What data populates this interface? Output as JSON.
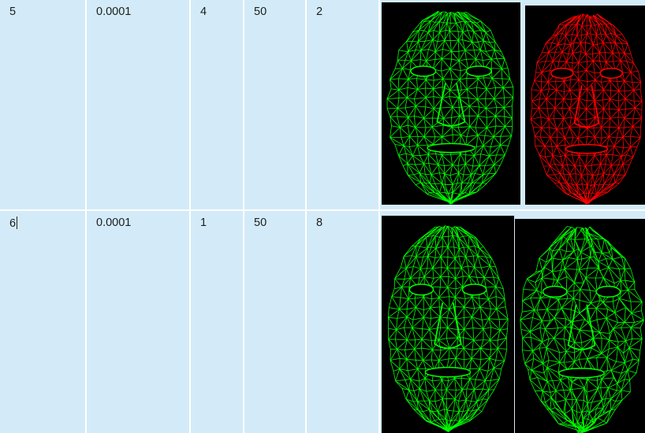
{
  "table": {
    "rows": [
      {
        "cells": [
          "5",
          "0.0001",
          "4",
          "50",
          "2"
        ],
        "meshes": [
          {
            "name": "face-mesh-green",
            "color": "#00ff00"
          },
          {
            "name": "face-mesh-red",
            "color": "#ff0000"
          }
        ]
      },
      {
        "cells": [
          "6",
          "0.0001",
          "1",
          "50",
          "8"
        ],
        "meshes": [
          {
            "name": "face-mesh-green",
            "color": "#00ff00"
          },
          {
            "name": "face-mesh-green-deformed",
            "color": "#00ff00"
          }
        ]
      }
    ]
  },
  "colors": {
    "cell_background": "#d3ebf8",
    "mesh_background": "#000000"
  }
}
